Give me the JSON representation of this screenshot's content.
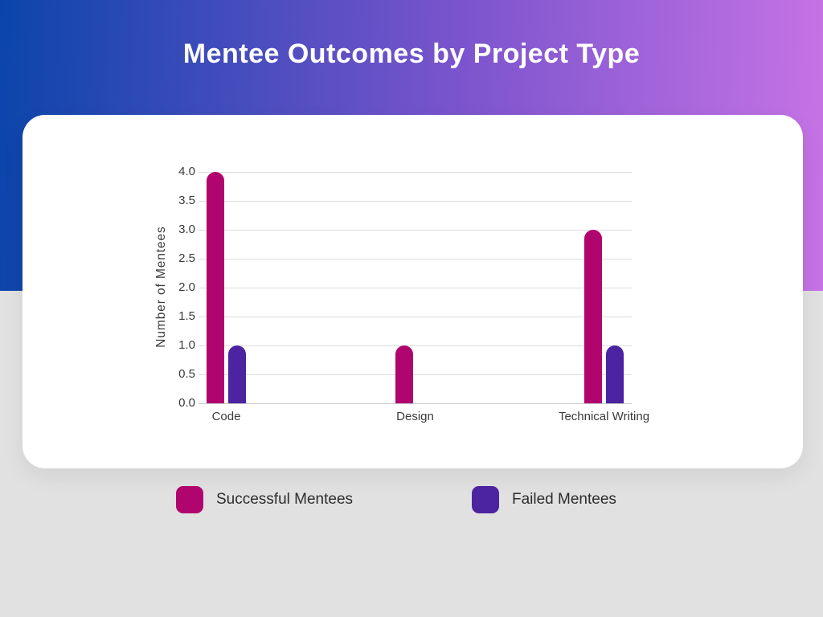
{
  "header": {
    "title": "Mentee Outcomes by Project Type"
  },
  "colors": {
    "page_background": "#e1e1e1",
    "header_gradient_start": "#0b45ab",
    "header_gradient_end": "#c673e5",
    "card_background": "#ffffff",
    "successful": "#B0046F",
    "failed": "#4C23A1",
    "grid_line": "#dcdcdc",
    "axis_text": "#3a3a3a",
    "legend_text": "#2d2d2d"
  },
  "chart_data": {
    "type": "bar",
    "categories": [
      "Code",
      "Design",
      "Technical Writing"
    ],
    "series": [
      {
        "name": "Successful Mentees",
        "values": [
          4,
          1,
          3
        ],
        "color": "#B0046F"
      },
      {
        "name": "Failed Mentees",
        "values": [
          1,
          0,
          1
        ],
        "color": "#4C23A1"
      }
    ],
    "title": "Mentee Outcomes by Project Type",
    "xlabel": "",
    "ylabel": "Number of Mentees",
    "ylim": [
      0,
      4
    ],
    "ytick_step": 0.5,
    "ytick_decimals": 1,
    "grid": "horizontal",
    "legend_position": "bottom"
  },
  "legend": {
    "items": [
      {
        "label": "Successful Mentees",
        "color": "#B0046F"
      },
      {
        "label": "Failed Mentees",
        "color": "#4C23A1"
      }
    ]
  }
}
